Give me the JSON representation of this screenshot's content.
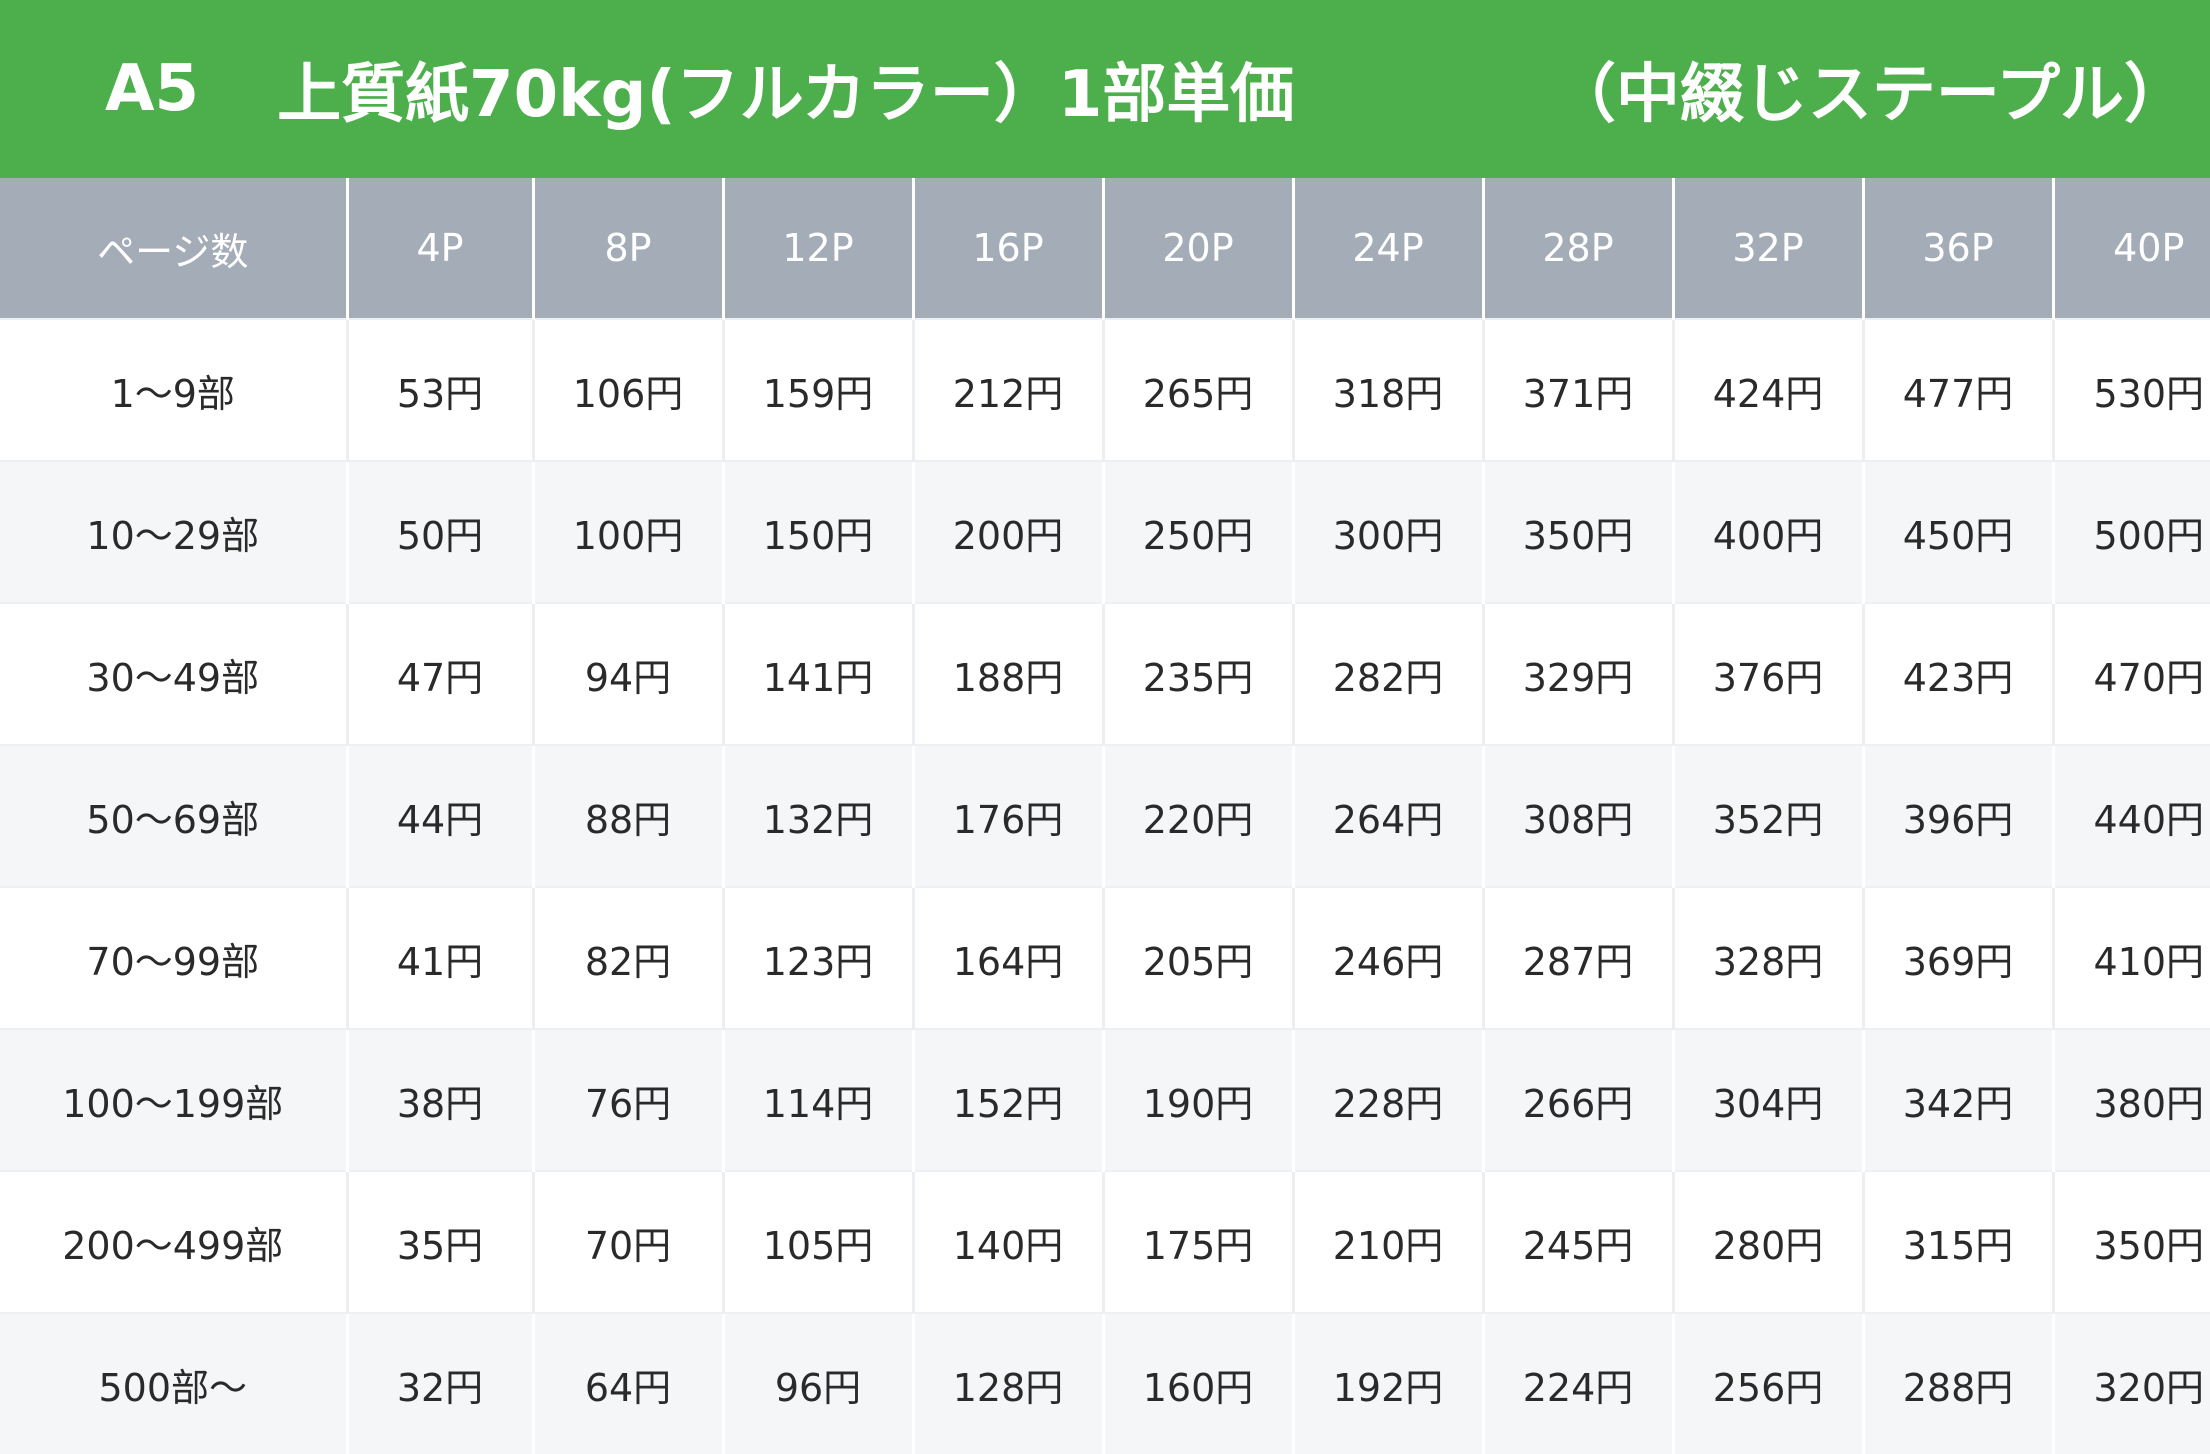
{
  "banner": {
    "size": "A5",
    "title": "上質紙70kg(フルカラー）1部単価",
    "binding": "（中綴じステープル）"
  },
  "colors": {
    "banner": "#4caf4b",
    "header": "#a4adb7",
    "stripe": "#f5f6f8"
  },
  "table": {
    "header": [
      "ページ数",
      "4P",
      "8P",
      "12P",
      "16P",
      "20P",
      "24P",
      "28P",
      "32P",
      "36P",
      "40P"
    ],
    "rows": [
      [
        "1〜9部",
        "53円",
        "106円",
        "159円",
        "212円",
        "265円",
        "318円",
        "371円",
        "424円",
        "477円",
        "530円"
      ],
      [
        "10〜29部",
        "50円",
        "100円",
        "150円",
        "200円",
        "250円",
        "300円",
        "350円",
        "400円",
        "450円",
        "500円"
      ],
      [
        "30〜49部",
        "47円",
        "94円",
        "141円",
        "188円",
        "235円",
        "282円",
        "329円",
        "376円",
        "423円",
        "470円"
      ],
      [
        "50〜69部",
        "44円",
        "88円",
        "132円",
        "176円",
        "220円",
        "264円",
        "308円",
        "352円",
        "396円",
        "440円"
      ],
      [
        "70〜99部",
        "41円",
        "82円",
        "123円",
        "164円",
        "205円",
        "246円",
        "287円",
        "328円",
        "369円",
        "410円"
      ],
      [
        "100〜199部",
        "38円",
        "76円",
        "114円",
        "152円",
        "190円",
        "228円",
        "266円",
        "304円",
        "342円",
        "380円"
      ],
      [
        "200〜499部",
        "35円",
        "70円",
        "105円",
        "140円",
        "175円",
        "210円",
        "245円",
        "280円",
        "315円",
        "350円"
      ],
      [
        "500部〜",
        "32円",
        "64円",
        "96円",
        "128円",
        "160円",
        "192円",
        "224円",
        "256円",
        "288円",
        "320円"
      ]
    ]
  }
}
